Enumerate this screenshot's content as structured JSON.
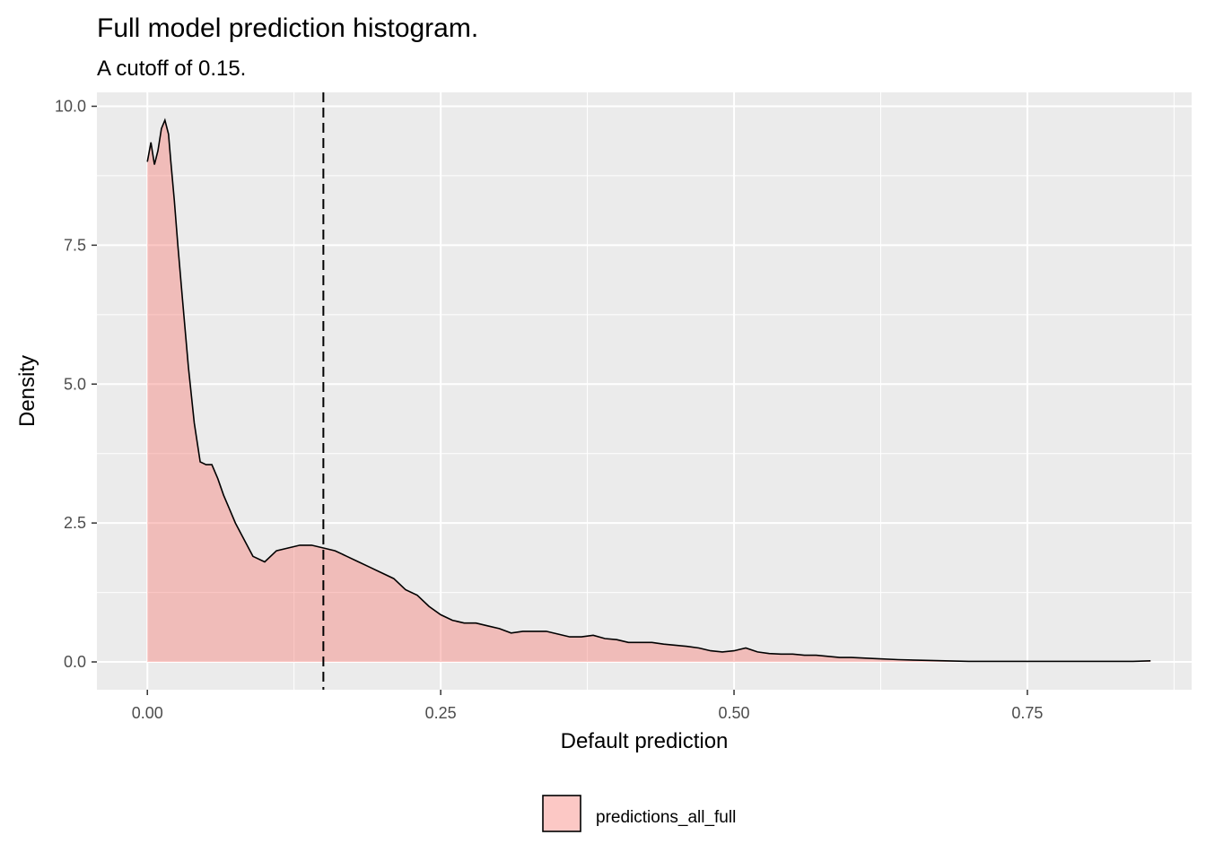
{
  "chart_data": {
    "type": "area",
    "title": "Full model prediction histogram.",
    "subtitle": "A cutoff of 0.15.",
    "xlabel": "Default prediction",
    "ylabel": "Density",
    "xlim": [
      -0.043,
      0.89
    ],
    "ylim": [
      -0.5,
      10.25
    ],
    "x_ticks": [
      0.0,
      0.25,
      0.5,
      0.75
    ],
    "x_tick_labels": [
      "0.00",
      "0.25",
      "0.50",
      "0.75"
    ],
    "y_ticks": [
      0.0,
      2.5,
      5.0,
      7.5,
      10.0
    ],
    "y_tick_labels": [
      "0.0",
      "2.5",
      "5.0",
      "7.5",
      "10.0"
    ],
    "grid": true,
    "cutoff": 0.15,
    "legend": {
      "position": "bottom",
      "entries": [
        "predictions_all_full"
      ]
    },
    "colors": {
      "fill": "#f8766d",
      "fill_opacity": 0.4,
      "line": "#000000",
      "panel": "#ebebeb",
      "grid": "#ffffff"
    },
    "series": [
      {
        "name": "predictions_all_full",
        "x": [
          0.0,
          0.003,
          0.006,
          0.009,
          0.012,
          0.015,
          0.018,
          0.02,
          0.023,
          0.026,
          0.03,
          0.035,
          0.04,
          0.045,
          0.05,
          0.055,
          0.06,
          0.065,
          0.07,
          0.075,
          0.08,
          0.09,
          0.1,
          0.11,
          0.12,
          0.13,
          0.14,
          0.15,
          0.16,
          0.17,
          0.18,
          0.19,
          0.2,
          0.21,
          0.22,
          0.23,
          0.24,
          0.25,
          0.26,
          0.27,
          0.28,
          0.29,
          0.3,
          0.31,
          0.32,
          0.33,
          0.34,
          0.35,
          0.36,
          0.37,
          0.38,
          0.39,
          0.4,
          0.41,
          0.42,
          0.43,
          0.44,
          0.45,
          0.46,
          0.47,
          0.48,
          0.49,
          0.5,
          0.51,
          0.52,
          0.53,
          0.54,
          0.55,
          0.56,
          0.57,
          0.58,
          0.59,
          0.6,
          0.62,
          0.64,
          0.66,
          0.68,
          0.7,
          0.72,
          0.74,
          0.76,
          0.78,
          0.8,
          0.82,
          0.84,
          0.855
        ],
        "values": [
          9.0,
          9.35,
          8.95,
          9.2,
          9.6,
          9.75,
          9.5,
          9.0,
          8.3,
          7.5,
          6.5,
          5.3,
          4.3,
          3.6,
          3.55,
          3.55,
          3.3,
          3.0,
          2.75,
          2.5,
          2.3,
          1.9,
          1.8,
          2.0,
          2.05,
          2.1,
          2.1,
          2.05,
          2.0,
          1.9,
          1.8,
          1.7,
          1.6,
          1.5,
          1.3,
          1.2,
          1.0,
          0.85,
          0.75,
          0.7,
          0.7,
          0.65,
          0.6,
          0.52,
          0.55,
          0.55,
          0.55,
          0.5,
          0.45,
          0.45,
          0.48,
          0.42,
          0.4,
          0.35,
          0.35,
          0.35,
          0.32,
          0.3,
          0.28,
          0.25,
          0.2,
          0.18,
          0.2,
          0.25,
          0.18,
          0.15,
          0.14,
          0.14,
          0.12,
          0.12,
          0.1,
          0.08,
          0.08,
          0.06,
          0.04,
          0.03,
          0.02,
          0.01,
          0.01,
          0.01,
          0.01,
          0.01,
          0.01,
          0.01,
          0.01,
          0.02
        ]
      }
    ]
  }
}
